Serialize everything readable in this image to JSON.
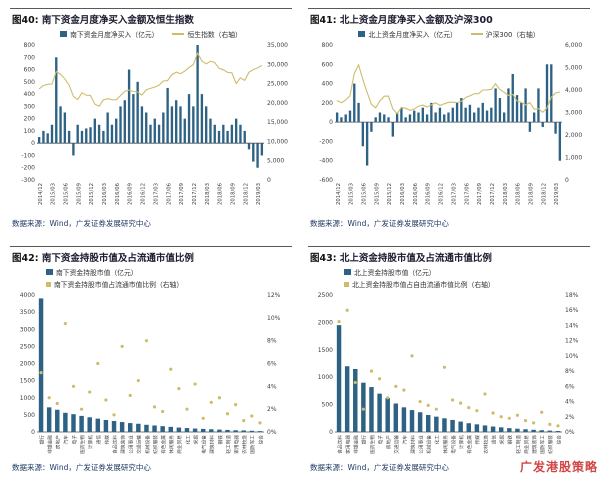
{
  "page": {
    "watermark": "广发港股策略"
  },
  "chart_data": [
    {
      "type": "bar",
      "fig_label": "图40:",
      "title": "南下资金月度净买入金额及恒生指数",
      "x_type": "time",
      "x_tick_every": 3,
      "right_series_type": "line",
      "legend": [
        {
          "label": "南下资金月度净买入（亿元）",
          "marker": "bar"
        },
        {
          "label": "恒生指数（右轴）",
          "marker": "line"
        }
      ],
      "colors": {
        "bar": "#2d6284",
        "line": "#cdbd6a"
      },
      "left_axis": {
        "min": -300,
        "max": 800,
        "step": 100,
        "format": "plain"
      },
      "right_axis": {
        "min": 0,
        "max": 35000,
        "step": 5000,
        "format": "comma"
      },
      "categories": [
        "2014/12",
        "2015/01",
        "2015/02",
        "2015/03",
        "2015/04",
        "2015/05",
        "2015/06",
        "2015/07",
        "2015/08",
        "2015/09",
        "2015/10",
        "2015/11",
        "2015/12",
        "2016/01",
        "2016/02",
        "2016/03",
        "2016/04",
        "2016/05",
        "2016/06",
        "2016/07",
        "2016/08",
        "2016/09",
        "2016/10",
        "2016/11",
        "2016/12",
        "2017/01",
        "2017/02",
        "2017/03",
        "2017/04",
        "2017/05",
        "2017/06",
        "2017/07",
        "2017/08",
        "2017/09",
        "2017/10",
        "2017/11",
        "2017/12",
        "2018/01",
        "2018/02",
        "2018/03",
        "2018/04",
        "2018/05",
        "2018/06",
        "2018/07",
        "2018/08",
        "2018/09",
        "2018/10",
        "2018/11",
        "2018/12",
        "2019/01",
        "2019/02",
        "2019/03",
        "2019/04"
      ],
      "bar_values": [
        50,
        100,
        80,
        150,
        700,
        300,
        250,
        100,
        -100,
        150,
        100,
        120,
        130,
        200,
        150,
        100,
        250,
        150,
        200,
        300,
        350,
        600,
        400,
        500,
        300,
        250,
        150,
        200,
        150,
        250,
        450,
        300,
        350,
        300,
        200,
        400,
        300,
        800,
        400,
        300,
        200,
        150,
        100,
        150,
        100,
        150,
        200,
        150,
        100,
        -50,
        -150,
        -200,
        -100
      ],
      "line_values": [
        23600,
        24500,
        24800,
        24900,
        28100,
        27400,
        26250,
        24600,
        21670,
        20850,
        22640,
        21996,
        21914,
        19683,
        19112,
        20777,
        21067,
        20815,
        20794,
        21891,
        22977,
        23297,
        22935,
        22790,
        22001,
        23361,
        23741,
        24112,
        24615,
        25661,
        25765,
        27324,
        27970,
        27554,
        28246,
        29177,
        29919,
        32887,
        30845,
        30093,
        30808,
        30469,
        28955,
        28583,
        27889,
        27789,
        24980,
        26507,
        25846,
        27942,
        28633,
        29051,
        29700
      ],
      "source": "数据来源：Wind，广发证券发展研究中心"
    },
    {
      "type": "bar",
      "fig_label": "图41:",
      "title": "北上资金月度净买入金额及沪深300",
      "x_type": "time",
      "x_tick_every": 3,
      "right_series_type": "line",
      "legend": [
        {
          "label": "北上资金月度净买入（亿元）",
          "marker": "bar"
        },
        {
          "label": "沪深300（右轴）",
          "marker": "line"
        }
      ],
      "colors": {
        "bar": "#2d6284",
        "line": "#cdbd6a"
      },
      "left_axis": {
        "min": -600,
        "max": 800,
        "step": 200,
        "format": "plain"
      },
      "right_axis": {
        "min": 0,
        "max": 6000,
        "step": 1000,
        "format": "comma"
      },
      "categories": [
        "2014/12",
        "2015/01",
        "2015/02",
        "2015/03",
        "2015/04",
        "2015/05",
        "2015/06",
        "2015/07",
        "2015/08",
        "2015/09",
        "2015/10",
        "2015/11",
        "2015/12",
        "2016/01",
        "2016/02",
        "2016/03",
        "2016/04",
        "2016/05",
        "2016/06",
        "2016/07",
        "2016/08",
        "2016/09",
        "2016/10",
        "2016/11",
        "2016/12",
        "2017/01",
        "2017/02",
        "2017/03",
        "2017/04",
        "2017/05",
        "2017/06",
        "2017/07",
        "2017/08",
        "2017/09",
        "2017/10",
        "2017/11",
        "2017/12",
        "2018/01",
        "2018/02",
        "2018/03",
        "2018/04",
        "2018/05",
        "2018/06",
        "2018/07",
        "2018/08",
        "2018/09",
        "2018/10",
        "2018/11",
        "2018/12",
        "2019/01",
        "2019/02",
        "2019/03",
        "2019/04"
      ],
      "bar_values": [
        100,
        50,
        80,
        120,
        400,
        200,
        -250,
        -450,
        -100,
        50,
        100,
        80,
        50,
        -150,
        100,
        150,
        50,
        80,
        120,
        100,
        150,
        80,
        200,
        100,
        150,
        80,
        100,
        150,
        200,
        250,
        150,
        180,
        100,
        150,
        200,
        120,
        150,
        350,
        250,
        100,
        350,
        500,
        280,
        200,
        350,
        -100,
        100,
        350,
        -50,
        600,
        600,
        -120,
        -400
      ],
      "line_values": [
        3534,
        3437,
        3557,
        3748,
        4748,
        5113,
        4473,
        3898,
        3366,
        3203,
        3524,
        3726,
        3731,
        3157,
        2946,
        3222,
        3193,
        3095,
        3154,
        3279,
        3331,
        3246,
        3338,
        3431,
        3310,
        3388,
        3452,
        3456,
        3440,
        3492,
        3666,
        3738,
        3832,
        3837,
        3998,
        4006,
        4031,
        4276,
        4023,
        3898,
        3756,
        3803,
        3511,
        3459,
        3334,
        3439,
        3143,
        3173,
        3010,
        3202,
        3678,
        3872,
        3913
      ],
      "source": "数据来源：Wind，广发证券发展研究中心"
    },
    {
      "type": "bar",
      "fig_label": "图42:",
      "title": "南下资金持股市值及占流通市值比例",
      "x_type": "category",
      "x_tick_every": 1,
      "right_series_type": "scatter",
      "legend": [
        {
          "label": "南下资金持股市值（亿元）",
          "marker": "bar"
        },
        {
          "label": "南下资金持股市值占流通市值比例（右轴）",
          "marker": "dot"
        }
      ],
      "colors": {
        "bar": "#2d6284",
        "line": "#cdbd6a"
      },
      "left_axis": {
        "min": 0,
        "max": 4000,
        "step": 500,
        "format": "plain"
      },
      "right_axis": {
        "min": 0,
        "max": 12,
        "step": 2,
        "format": "percent"
      },
      "categories": [
        "银行",
        "非银金融",
        "房地产",
        "汽车",
        "电子",
        "医药生物",
        "计算机",
        "通信",
        "传媒",
        "食品饮料",
        "建筑装饰",
        "公用事业",
        "交通运输",
        "机械设备",
        "纺织服装",
        "有色金属",
        "休闲服务",
        "商业贸易",
        "化工",
        "采掘",
        "电气设备",
        "建筑材料",
        "钢铁",
        "轻工制造",
        "家用电器",
        "农林牧渔",
        "国防军工",
        "综合"
      ],
      "bar_values": [
        3900,
        720,
        650,
        560,
        520,
        470,
        430,
        390,
        350,
        320,
        290,
        260,
        240,
        210,
        190,
        170,
        150,
        130,
        115,
        100,
        90,
        80,
        70,
        60,
        50,
        45,
        35,
        25
      ],
      "line_values": [
        5.2,
        3.0,
        2.5,
        9.5,
        4.0,
        2.0,
        3.5,
        6.0,
        2.8,
        1.5,
        7.5,
        3.2,
        4.5,
        8.0,
        2.2,
        1.8,
        5.5,
        3.8,
        2.0,
        4.2,
        1.2,
        2.6,
        3.0,
        1.6,
        2.4,
        1.0,
        1.4,
        0.8
      ],
      "source": "数据来源：Wind，广发证券发展研究中心"
    },
    {
      "type": "bar",
      "fig_label": "图43:",
      "title": "北上资金持股市值及占流通市值比例",
      "x_type": "category",
      "x_tick_every": 1,
      "right_series_type": "scatter",
      "legend": [
        {
          "label": "北上资金持股市值（亿元）",
          "marker": "bar"
        },
        {
          "label": "北上资金持股市值占自由流通市值比例（右轴）",
          "marker": "dot"
        }
      ],
      "colors": {
        "bar": "#2d6284",
        "line": "#cdbd6a"
      },
      "left_axis": {
        "min": 0,
        "max": 2500,
        "step": 500,
        "format": "plain"
      },
      "right_axis": {
        "min": 0,
        "max": 18,
        "step": 2,
        "format": "percent"
      },
      "categories": [
        "食品饮料",
        "家用电器",
        "非银金融",
        "银行",
        "医药生物",
        "电子",
        "房地产",
        "交通运输",
        "汽车",
        "建筑材料",
        "公用事业",
        "机械设备",
        "化工",
        "休闲服务",
        "电气设备",
        "计算机",
        "有色金属",
        "传媒",
        "农林牧渔",
        "通信",
        "采掘",
        "钢铁",
        "轻工制造",
        "商业贸易",
        "建筑装饰",
        "国防军工",
        "纺织服装",
        "综合"
      ],
      "bar_values": [
        1950,
        1200,
        1150,
        900,
        820,
        700,
        620,
        520,
        450,
        400,
        360,
        310,
        280,
        250,
        220,
        190,
        160,
        140,
        120,
        100,
        85,
        70,
        60,
        50,
        40,
        32,
        25,
        18
      ],
      "line_values": [
        14.5,
        16.0,
        6.5,
        3.0,
        8.0,
        7.0,
        4.5,
        6.0,
        5.5,
        10.0,
        4.0,
        3.5,
        3.0,
        8.5,
        4.2,
        3.8,
        3.2,
        2.8,
        5.0,
        2.5,
        2.0,
        1.8,
        2.2,
        1.5,
        1.2,
        2.6,
        1.0,
        0.8
      ],
      "source": "数据来源：Wind，广发证券发展研究中心"
    }
  ]
}
